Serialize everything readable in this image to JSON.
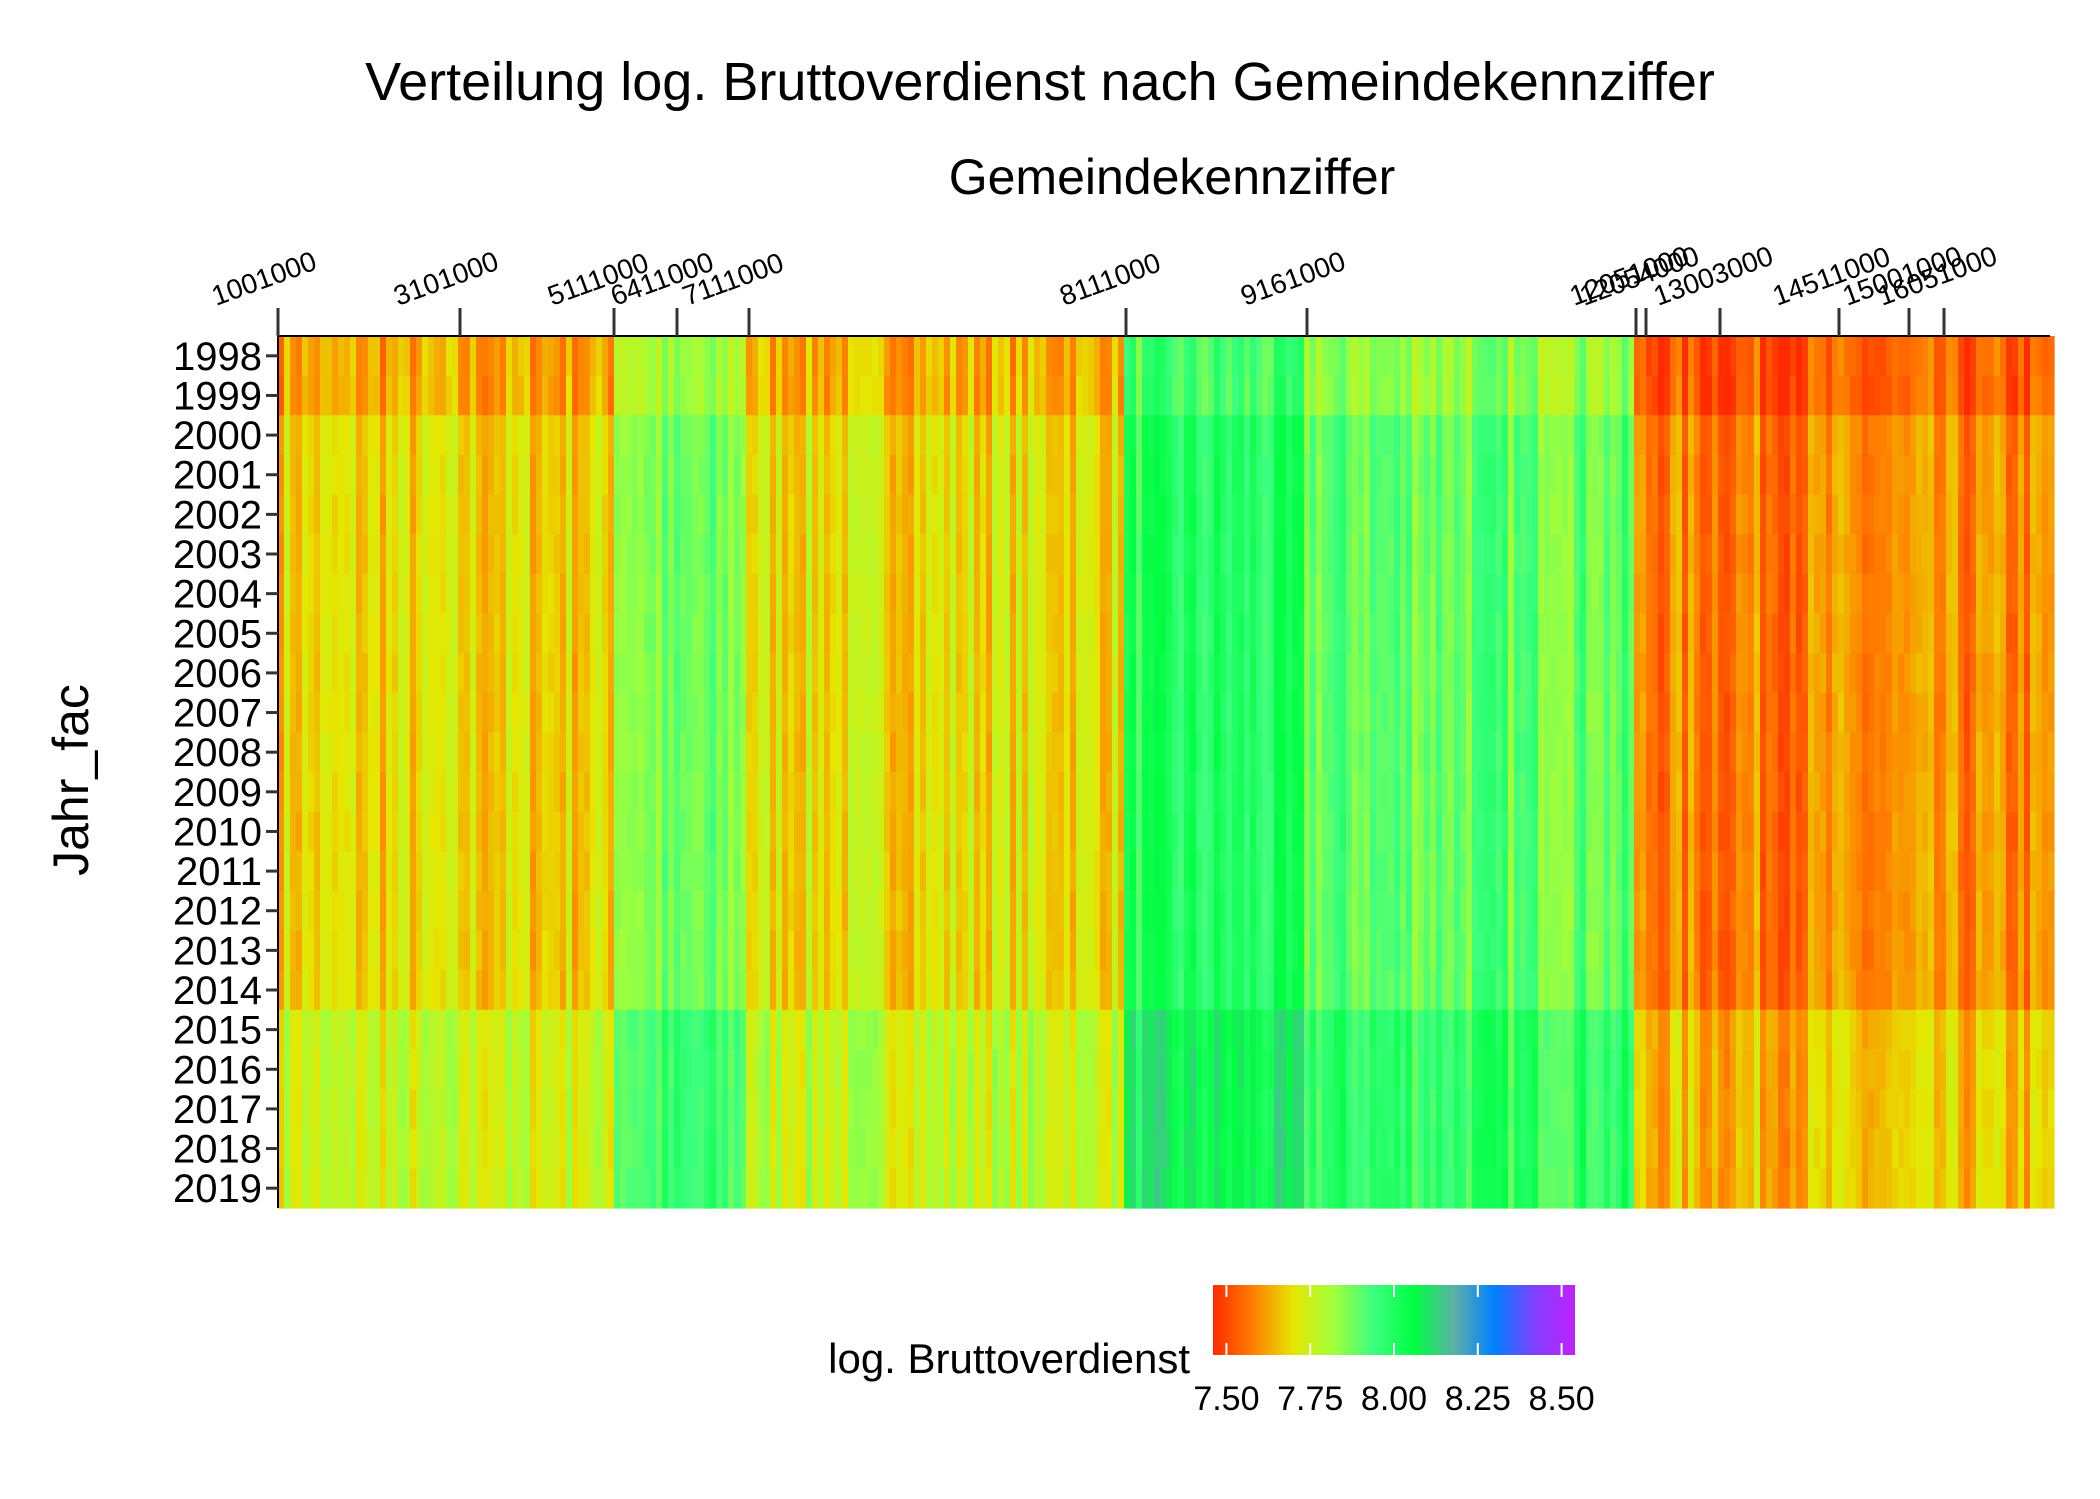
{
  "chart_data": {
    "type": "heatmap",
    "title": "Verteilung log. Bruttoverdienst nach Gemeindekennziffer",
    "xlabel": "Gemeindekennziffer",
    "ylabel": "Jahr_fac",
    "x_axis_position": "top",
    "x_tick_labels": [
      "1001000",
      "3101000",
      "5111000",
      "6411000",
      "7111000",
      "8111000",
      "9161000",
      "12051000",
      "12054000",
      "13003000",
      "14511000",
      "15001000",
      "16051000"
    ],
    "years": [
      "1998",
      "1999",
      "2000",
      "2001",
      "2002",
      "2003",
      "2004",
      "2005",
      "2006",
      "2007",
      "2008",
      "2009",
      "2010",
      "2011",
      "2012",
      "2013",
      "2014",
      "2015",
      "2016",
      "2017",
      "2018",
      "2019"
    ],
    "column_regions": [
      {
        "from": "1001000",
        "to": "5111000",
        "value": 7.68
      },
      {
        "from": "5111000",
        "to": "7111000",
        "value": 7.86
      },
      {
        "from": "7111000",
        "to": "8111000",
        "value": 7.7
      },
      {
        "from": "8111000",
        "to": "9161000",
        "value": 7.98
      },
      {
        "from": "9161000",
        "to": "12051000",
        "value": 7.9
      },
      {
        "from": "12051000",
        "to": "16051000",
        "value": 7.58
      }
    ],
    "period_offsets": [
      {
        "years": "1998-1999",
        "delta": -0.06
      },
      {
        "years": "2000-2007",
        "delta": 0.0
      },
      {
        "years": "2008-2014",
        "delta": 0.0
      },
      {
        "years": "2015-2019",
        "delta": 0.07
      }
    ],
    "legend": {
      "title": "log. Bruttoverdienst",
      "ticks": [
        "7.50",
        "7.75",
        "8.00",
        "8.25",
        "8.50"
      ],
      "range": [
        7.46,
        8.54
      ],
      "colors": [
        "#ff2a00",
        "#ff7f00",
        "#e6e600",
        "#a0ff3c",
        "#3cff80",
        "#00ff40",
        "#5cb0a8",
        "#0080ff",
        "#8040ff",
        "#c020ff"
      ]
    }
  }
}
